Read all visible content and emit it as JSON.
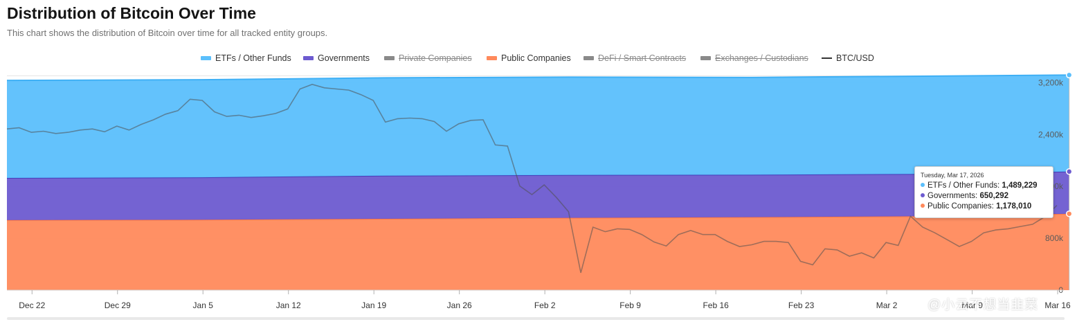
{
  "header": {
    "title": "Distribution of Bitcoin Over Time",
    "subtitle": "This chart shows the distribution of Bitcoin over time for all tracked entity groups."
  },
  "legend": [
    {
      "label": "ETFs / Other Funds",
      "color": "#5bbffc",
      "enabled": true,
      "kind": "area"
    },
    {
      "label": "Governments",
      "color": "#6d5bd0",
      "enabled": true,
      "kind": "area"
    },
    {
      "label": "Private Companies",
      "color": "#8a8a8a",
      "enabled": false,
      "kind": "area"
    },
    {
      "label": "Public Companies",
      "color": "#ff8a5c",
      "enabled": true,
      "kind": "area"
    },
    {
      "label": "DeFi / Smart Contracts",
      "color": "#8a8a8a",
      "enabled": false,
      "kind": "area"
    },
    {
      "label": "Exchanges / Custodians",
      "color": "#8a8a8a",
      "enabled": false,
      "kind": "area"
    },
    {
      "label": "BTC/USD",
      "color": "#333333",
      "enabled": true,
      "kind": "line"
    }
  ],
  "tooltip": {
    "date": "Tuesday, Mar 17, 2026",
    "rows": [
      {
        "label": "ETFs / Other Funds:",
        "value": "1,489,229",
        "color": "#5bbffc"
      },
      {
        "label": "Governments:",
        "value": "650,292",
        "color": "#6d5bd0"
      },
      {
        "label": "Public Companies:",
        "value": "1,178,010",
        "color": "#ff8a5c"
      }
    ]
  },
  "watermark": "@小云不想当韭菜",
  "chart_data": {
    "type": "area",
    "stacked": true,
    "y_axis_labels": [
      "0",
      "800k",
      "1,600k",
      "2,400k",
      "3,200k"
    ],
    "ylim": [
      0,
      3300000
    ],
    "x_axis_labels": [
      "Dec 22",
      "Dec 29",
      "Jan 5",
      "Jan 12",
      "Jan 19",
      "Jan 26",
      "Feb 2",
      "Feb 9",
      "Feb 16",
      "Feb 23",
      "Mar 2",
      "Mar 9",
      "Mar 16"
    ],
    "x_start": "2025-12-20",
    "series": [
      {
        "name": "Public Companies",
        "color": "#ff8a5c",
        "x": [
          "2025-12-20",
          "2026-01-05",
          "2026-01-20",
          "2026-02-04",
          "2026-02-19",
          "2026-03-06",
          "2026-03-17"
        ],
        "values": [
          1080000,
          1085000,
          1100000,
          1115000,
          1125000,
          1140000,
          1178010
        ]
      },
      {
        "name": "Governments",
        "color": "#6d5bd0",
        "x": [
          "2025-12-20",
          "2026-01-05",
          "2026-01-20",
          "2026-02-04",
          "2026-02-19",
          "2026-03-06",
          "2026-03-17"
        ],
        "values": [
          650000,
          655000,
          665000,
          660000,
          655000,
          652000,
          650292
        ]
      },
      {
        "name": "ETFs / Other Funds",
        "color": "#5bbffc",
        "x": [
          "2025-12-20",
          "2026-01-05",
          "2026-01-20",
          "2026-02-04",
          "2026-02-19",
          "2026-03-06",
          "2026-03-17"
        ],
        "values": [
          1505000,
          1505000,
          1510000,
          1510000,
          1500000,
          1510000,
          1489229
        ]
      }
    ],
    "btc_usd": {
      "name": "BTC/USD",
      "color": "#333333",
      "x": [
        "2025-12-20",
        "2025-12-21",
        "2025-12-22",
        "2025-12-23",
        "2025-12-24",
        "2025-12-25",
        "2025-12-26",
        "2025-12-27",
        "2025-12-28",
        "2025-12-29",
        "2025-12-30",
        "2025-12-31",
        "2026-01-01",
        "2026-01-02",
        "2026-01-03",
        "2026-01-04",
        "2026-01-05",
        "2026-01-06",
        "2026-01-07",
        "2026-01-08",
        "2026-01-09",
        "2026-01-10",
        "2026-01-11",
        "2026-01-12",
        "2026-01-13",
        "2026-01-14",
        "2026-01-15",
        "2026-01-16",
        "2026-01-17",
        "2026-01-18",
        "2026-01-19",
        "2026-01-20",
        "2026-01-21",
        "2026-01-22",
        "2026-01-23",
        "2026-01-24",
        "2026-01-25",
        "2026-01-26",
        "2026-01-27",
        "2026-01-28",
        "2026-01-29",
        "2026-01-30",
        "2026-01-31",
        "2026-02-01",
        "2026-02-02",
        "2026-02-03",
        "2026-02-04",
        "2026-02-05",
        "2026-02-06",
        "2026-02-07",
        "2026-02-08",
        "2026-02-09",
        "2026-02-10",
        "2026-02-11",
        "2026-02-12",
        "2026-02-13",
        "2026-02-14",
        "2026-02-15",
        "2026-02-16",
        "2026-02-17",
        "2026-02-18",
        "2026-02-19",
        "2026-02-20",
        "2026-02-21",
        "2026-02-22",
        "2026-02-23",
        "2026-02-24",
        "2026-02-25",
        "2026-02-26",
        "2026-02-27",
        "2026-02-28",
        "2026-03-01",
        "2026-03-02",
        "2026-03-03",
        "2026-03-04",
        "2026-03-05",
        "2026-03-06",
        "2026-03-07",
        "2026-03-08",
        "2026-03-09",
        "2026-03-10",
        "2026-03-11",
        "2026-03-12",
        "2026-03-13",
        "2026-03-14",
        "2026-03-15",
        "2026-03-16"
      ],
      "values": [
        88000,
        88200,
        87400,
        87600,
        87200,
        87400,
        87800,
        88000,
        87500,
        88500,
        87800,
        88800,
        89600,
        90600,
        91200,
        93200,
        93000,
        91000,
        90200,
        90400,
        90000,
        90300,
        90700,
        91500,
        95000,
        95800,
        95200,
        95000,
        94800,
        94000,
        93000,
        89200,
        89800,
        89900,
        89800,
        89300,
        87600,
        88900,
        89500,
        89600,
        85200,
        85000,
        78000,
        76500,
        78200,
        76000,
        73500,
        62800,
        70800,
        70000,
        70500,
        70400,
        69500,
        68200,
        67500,
        69500,
        70200,
        69500,
        69500,
        68300,
        67400,
        67700,
        68300,
        68300,
        68100,
        64800,
        64200,
        67000,
        66800,
        65700,
        66300,
        65400,
        68100,
        67600,
        72700,
        70800,
        69800,
        68600,
        67400,
        68300,
        69800,
        70300,
        70500,
        70900,
        71300,
        72600,
        74600
      ]
    }
  }
}
